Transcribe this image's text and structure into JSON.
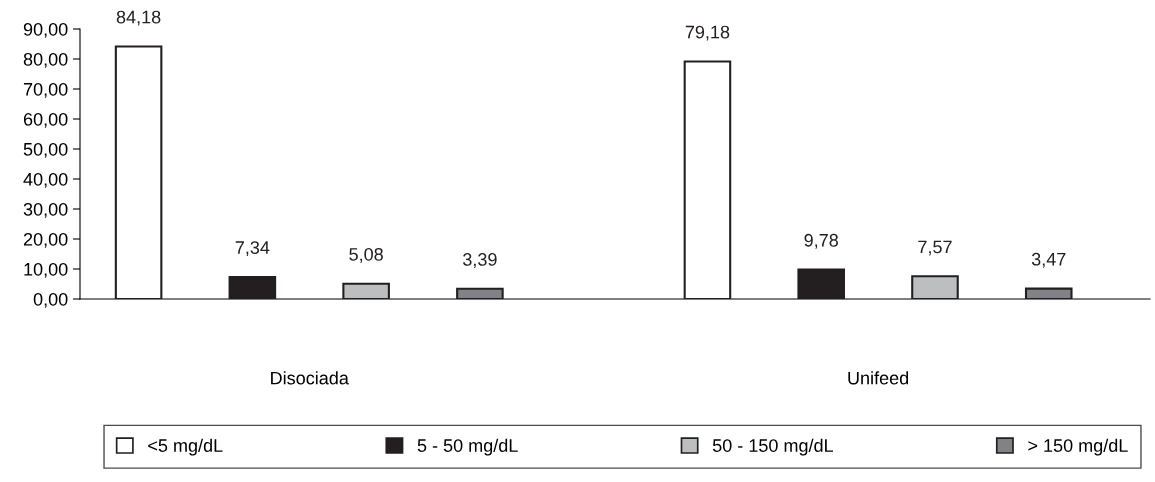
{
  "chart_data": {
    "type": "bar",
    "categories": [
      "Disociada",
      "Unifeed"
    ],
    "series": [
      {
        "name": "<5 mg/dL",
        "color": "#ffffff",
        "values": [
          84.18,
          79.18
        ]
      },
      {
        "name": "5 - 50 mg/dL",
        "color": "#231f20",
        "values": [
          7.34,
          9.78
        ]
      },
      {
        "name": "50 - 150 mg/dL",
        "color": "#bcbec0",
        "values": [
          5.08,
          7.57
        ]
      },
      {
        "name": "> 150 mg/dL",
        "color": "#808285",
        "values": [
          3.39,
          3.47
        ]
      }
    ],
    "value_labels": [
      [
        "84,18",
        "79,18"
      ],
      [
        "7,34",
        "9,78"
      ],
      [
        "5,08",
        "7,57"
      ],
      [
        "3,39",
        "3,47"
      ]
    ],
    "ylim": [
      0,
      90
    ],
    "yticks": [
      {
        "value": 0,
        "label": "0,00"
      },
      {
        "value": 10,
        "label": "10,00"
      },
      {
        "value": 20,
        "label": "20,00"
      },
      {
        "value": 30,
        "label": "30,00"
      },
      {
        "value": 40,
        "label": "40,00"
      },
      {
        "value": 50,
        "label": "50,00"
      },
      {
        "value": 60,
        "label": "60,00"
      },
      {
        "value": 70,
        "label": "70,00"
      },
      {
        "value": 80,
        "label": "80,00"
      },
      {
        "value": 90,
        "label": "90,00"
      }
    ],
    "grid": false,
    "legend": "bottom"
  }
}
